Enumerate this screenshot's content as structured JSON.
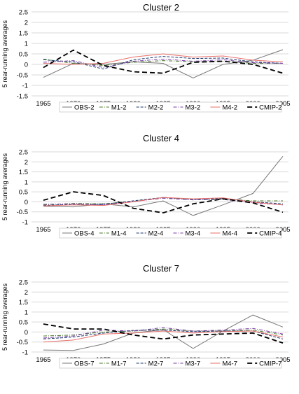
{
  "chart_data": [
    {
      "type": "line",
      "title": "Cluster 2",
      "ylabel": "5 rear-running averages",
      "xlabel": "",
      "x": [
        1965,
        1970,
        1975,
        1980,
        1985,
        1990,
        1995,
        2000,
        2005
      ],
      "ylim": [
        -1.5,
        2.5
      ],
      "yticks": [
        "-1.5",
        "-1",
        "-0.5",
        "0",
        "0.5",
        "1",
        "1.5",
        "2",
        "2.5"
      ],
      "grid": true,
      "legend": "bottom",
      "series": [
        {
          "name": "OBS-2",
          "color": "#777777",
          "dash": "solid",
          "values": [
            -0.62,
            0.05,
            0.0,
            0.12,
            0.05,
            -0.65,
            0.0,
            0.2,
            0.7
          ]
        },
        {
          "name": "M1-2",
          "color": "#4a7a2a",
          "dash": "dashdot",
          "values": [
            0.25,
            0.05,
            -0.05,
            0.1,
            0.18,
            0.12,
            0.15,
            0.05,
            0.05
          ]
        },
        {
          "name": "M2-2",
          "color": "#1f3a6e",
          "dash": "dash",
          "values": [
            0.22,
            0.12,
            -0.22,
            0.22,
            0.38,
            0.28,
            0.3,
            0.12,
            0.05
          ]
        },
        {
          "name": "M3-2",
          "color": "#7b3fa8",
          "dash": "dashdot",
          "values": [
            0.1,
            0.18,
            -0.15,
            0.15,
            0.25,
            0.15,
            0.22,
            0.08,
            0.05
          ]
        },
        {
          "name": "M4-2",
          "color": "#e8706a",
          "dash": "solid",
          "values": [
            0.05,
            0.0,
            0.05,
            0.35,
            0.5,
            0.35,
            0.4,
            0.2,
            0.12
          ]
        },
        {
          "name": "CMIP-2",
          "color": "#000000",
          "dash": "bigdash",
          "values": [
            -0.15,
            0.68,
            -0.05,
            -0.35,
            -0.42,
            0.1,
            0.15,
            0.0,
            -0.42
          ]
        }
      ]
    },
    {
      "type": "line",
      "title": "Cluster 4",
      "ylabel": "5 rear-running averages",
      "xlabel": "",
      "x": [
        1965,
        1970,
        1975,
        1980,
        1985,
        1990,
        1995,
        2000,
        2005
      ],
      "ylim": [
        -1.0,
        2.5
      ],
      "yticks": [
        "-1",
        "-0.5",
        "0",
        "0.5",
        "1",
        "1.5",
        "2",
        "2.5"
      ],
      "grid": true,
      "legend": "bottom",
      "series": [
        {
          "name": "OBS-4",
          "color": "#777777",
          "dash": "solid",
          "values": [
            -0.22,
            -0.25,
            -0.1,
            -0.25,
            0.05,
            -0.68,
            -0.15,
            0.42,
            2.28
          ]
        },
        {
          "name": "M1-4",
          "color": "#4a7a2a",
          "dash": "dashdot",
          "values": [
            -0.15,
            -0.08,
            -0.1,
            0.02,
            0.2,
            0.1,
            0.15,
            0.05,
            0.05
          ]
        },
        {
          "name": "M2-4",
          "color": "#1f3a6e",
          "dash": "dash",
          "values": [
            -0.18,
            -0.12,
            -0.12,
            0.05,
            0.22,
            0.12,
            0.18,
            0.0,
            -0.1
          ]
        },
        {
          "name": "M3-4",
          "color": "#7b3fa8",
          "dash": "dashdot",
          "values": [
            -0.12,
            -0.1,
            -0.15,
            0.02,
            0.18,
            0.1,
            0.12,
            -0.05,
            -0.15
          ]
        },
        {
          "name": "M4-4",
          "color": "#e8706a",
          "dash": "solid",
          "values": [
            -0.2,
            -0.15,
            -0.18,
            0.0,
            0.22,
            0.15,
            0.2,
            -0.02,
            -0.15
          ]
        },
        {
          "name": "CMIP-4",
          "color": "#000000",
          "dash": "bigdash",
          "values": [
            0.08,
            0.5,
            0.32,
            -0.32,
            -0.55,
            -0.1,
            0.15,
            -0.05,
            -0.52
          ]
        }
      ]
    },
    {
      "type": "line",
      "title": "Cluster 7",
      "ylabel": "5 rear-running averages",
      "xlabel": "",
      "x": [
        1965,
        1970,
        1975,
        1980,
        1985,
        1990,
        1995,
        2000,
        2005
      ],
      "ylim": [
        -1.0,
        2.5
      ],
      "yticks": [
        "-1",
        "-0.5",
        "0",
        "0.5",
        "1",
        "1.5",
        "2",
        "2.5"
      ],
      "grid": true,
      "legend": "bottom",
      "series": [
        {
          "name": "OBS-7",
          "color": "#777777",
          "dash": "solid",
          "values": [
            -0.9,
            -0.92,
            -0.6,
            -0.05,
            0.12,
            -0.82,
            0.05,
            0.85,
            0.25
          ]
        },
        {
          "name": "M1-7",
          "color": "#4a7a2a",
          "dash": "dashdot",
          "values": [
            -0.2,
            -0.15,
            0.0,
            0.05,
            0.15,
            0.05,
            0.05,
            0.1,
            -0.15
          ]
        },
        {
          "name": "M2-7",
          "color": "#1f3a6e",
          "dash": "dash",
          "values": [
            -0.35,
            -0.25,
            -0.05,
            0.08,
            0.1,
            0.02,
            0.05,
            0.05,
            -0.35
          ]
        },
        {
          "name": "M3-7",
          "color": "#7b3fa8",
          "dash": "dashdot",
          "values": [
            -0.3,
            -0.2,
            0.1,
            0.05,
            0.22,
            0.05,
            0.1,
            0.18,
            -0.1
          ]
        },
        {
          "name": "M4-7",
          "color": "#e8706a",
          "dash": "solid",
          "values": [
            -0.5,
            -0.4,
            -0.1,
            -0.05,
            0.05,
            -0.05,
            0.02,
            0.05,
            -0.25
          ]
        },
        {
          "name": "CMIP-7",
          "color": "#000000",
          "dash": "bigdash",
          "values": [
            0.4,
            0.15,
            0.15,
            -0.15,
            -0.35,
            -0.15,
            -0.1,
            -0.05,
            -0.55
          ]
        }
      ]
    }
  ]
}
